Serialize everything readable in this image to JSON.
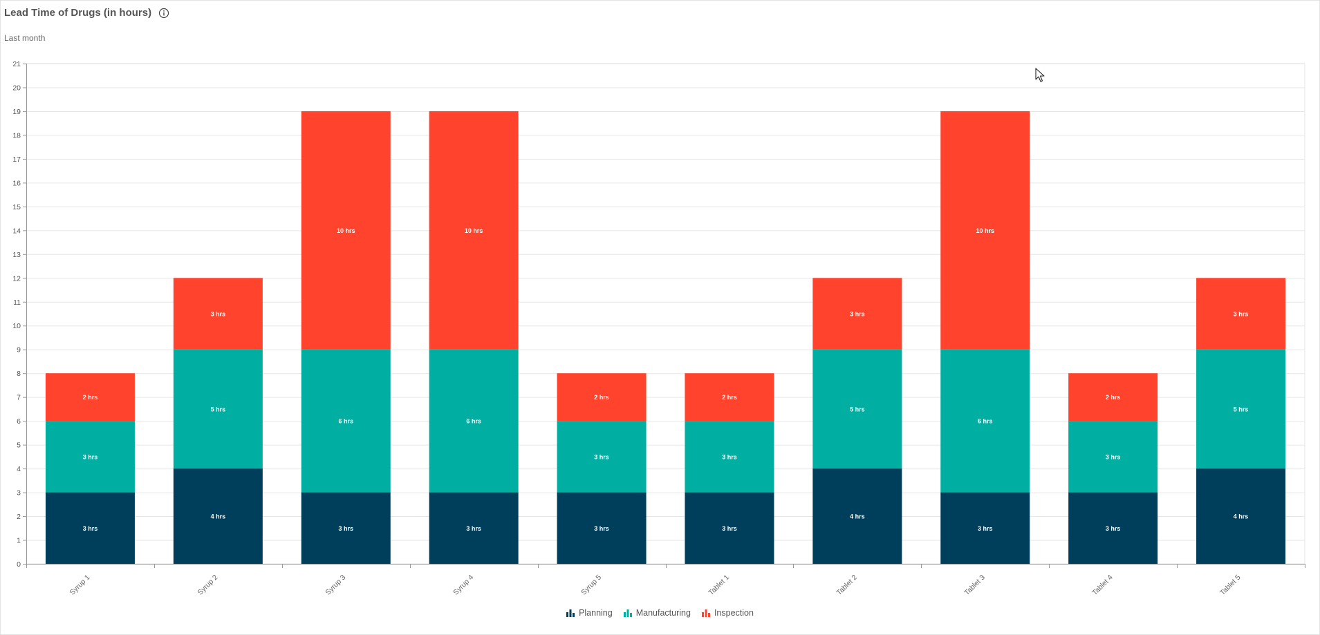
{
  "header": {
    "title": "Lead Time of Drugs (in hours)",
    "subtitle": "Last month",
    "info_icon": "info-icon"
  },
  "legend": [
    {
      "label": "Planning",
      "color": "#003f5c",
      "icon": "bar-chart-icon"
    },
    {
      "label": "Manufacturing",
      "color": "#00aea2",
      "icon": "bar-chart-icon"
    },
    {
      "label": "Inspection",
      "color": "#ff432c",
      "icon": "bar-chart-icon"
    }
  ],
  "chart_data": {
    "type": "bar",
    "stacked": true,
    "categories": [
      "Syrup 1",
      "Syrup 2",
      "Syrup 3",
      "Syrup 4",
      "Syrup 5",
      "Tablet 1",
      "Tablet 2",
      "Tablet 3",
      "Tablet 4",
      "Tablet 5"
    ],
    "series": [
      {
        "name": "Planning",
        "color": "#003f5c",
        "values": [
          3,
          4,
          3,
          3,
          3,
          3,
          4,
          3,
          3,
          4
        ]
      },
      {
        "name": "Manufacturing",
        "color": "#00aea2",
        "values": [
          3,
          5,
          6,
          6,
          3,
          3,
          5,
          6,
          3,
          5
        ]
      },
      {
        "name": "Inspection",
        "color": "#ff432c",
        "values": [
          2,
          3,
          10,
          10,
          2,
          2,
          3,
          10,
          2,
          3
        ]
      }
    ],
    "label_suffix": " hrs",
    "ylim": [
      0,
      21
    ],
    "yticks": [
      0,
      1,
      2,
      3,
      4,
      5,
      6,
      7,
      8,
      9,
      10,
      11,
      12,
      13,
      14,
      15,
      16,
      17,
      18,
      19,
      20,
      21
    ],
    "grid": true,
    "legend_position": "bottom-center"
  }
}
